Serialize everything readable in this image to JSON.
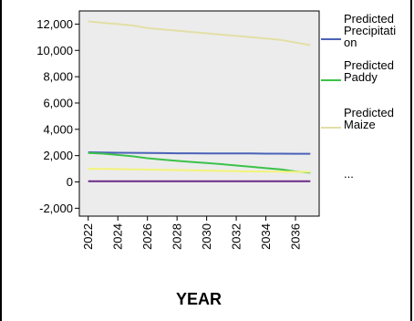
{
  "chart_data": {
    "type": "line",
    "title": "",
    "xlabel": "YEAR",
    "ylabel": "",
    "x": [
      2022,
      2023,
      2024,
      2025,
      2026,
      2027,
      2028,
      2029,
      2030,
      2031,
      2032,
      2033,
      2034,
      2035,
      2036,
      2037
    ],
    "x_tick_labels": [
      "2022",
      "2024",
      "2026",
      "2028",
      "2030",
      "2032",
      "2034",
      "2036"
    ],
    "x_tick_values": [
      2022,
      2024,
      2026,
      2028,
      2030,
      2032,
      2034,
      2036
    ],
    "ylim": [
      -2600,
      13000
    ],
    "y_ticks": [
      -2000,
      0,
      2000,
      4000,
      6000,
      8000,
      10000,
      12000
    ],
    "y_tick_labels": [
      "-2,000",
      "0",
      "2,000",
      "4,000",
      "6,000",
      "8,000",
      "10,000",
      "12,000"
    ],
    "grid": false,
    "legend_position": "right",
    "legend_more": "...",
    "background": "#ececec",
    "series": [
      {
        "name": "Predicted Precipitation",
        "legend_lines": [
          "Predicted",
          "Precipitati",
          "on"
        ],
        "color": "#4a62b8",
        "values": [
          2250,
          2230,
          2220,
          2210,
          2200,
          2190,
          2180,
          2180,
          2170,
          2170,
          2160,
          2160,
          2150,
          2150,
          2140,
          2140
        ]
      },
      {
        "name": "Predicted Paddy",
        "legend_lines": [
          "Predicted",
          "Paddy"
        ],
        "color": "#3cc24a",
        "values": [
          2200,
          2150,
          2050,
          1950,
          1800,
          1700,
          1600,
          1520,
          1440,
          1350,
          1250,
          1150,
          1050,
          950,
          800,
          700
        ]
      },
      {
        "name": "Predicted Maize",
        "legend_lines": [
          "Predicted",
          "Maize"
        ],
        "color": "#e2dfa6",
        "values": [
          12200,
          12100,
          12000,
          11900,
          11700,
          11600,
          11500,
          11400,
          11300,
          11200,
          11100,
          11000,
          10900,
          10800,
          10600,
          10400
        ]
      },
      {
        "color": "#f3f37a",
        "values": [
          1000,
          990,
          980,
          960,
          940,
          920,
          900,
          880,
          860,
          840,
          820,
          800,
          790,
          780,
          770,
          760
        ]
      },
      {
        "color": "#6a2a86",
        "values": [
          50,
          50,
          50,
          50,
          50,
          50,
          50,
          50,
          50,
          50,
          50,
          50,
          50,
          50,
          50,
          50
        ]
      }
    ]
  }
}
